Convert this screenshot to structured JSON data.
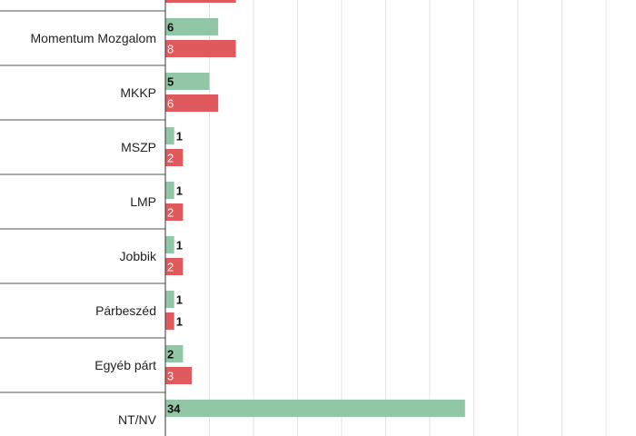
{
  "chart_data": {
    "type": "bar",
    "orientation": "horizontal",
    "categories": [
      "",
      "Momentum Mozgalom",
      "MKKP",
      "MSZP",
      "LMP",
      "Jobbik",
      "Párbeszéd",
      "Egyéb párt",
      "NT/NV"
    ],
    "series": [
      {
        "color": "#91c7a7",
        "values": [
          null,
          6,
          5,
          1,
          1,
          1,
          1,
          2,
          34
        ]
      },
      {
        "color": "#e05a5d",
        "values": [
          8,
          8,
          6,
          2,
          2,
          2,
          1,
          3,
          null
        ]
      }
    ],
    "xlim": [
      0,
      54
    ],
    "grid": true,
    "legend": "none"
  }
}
